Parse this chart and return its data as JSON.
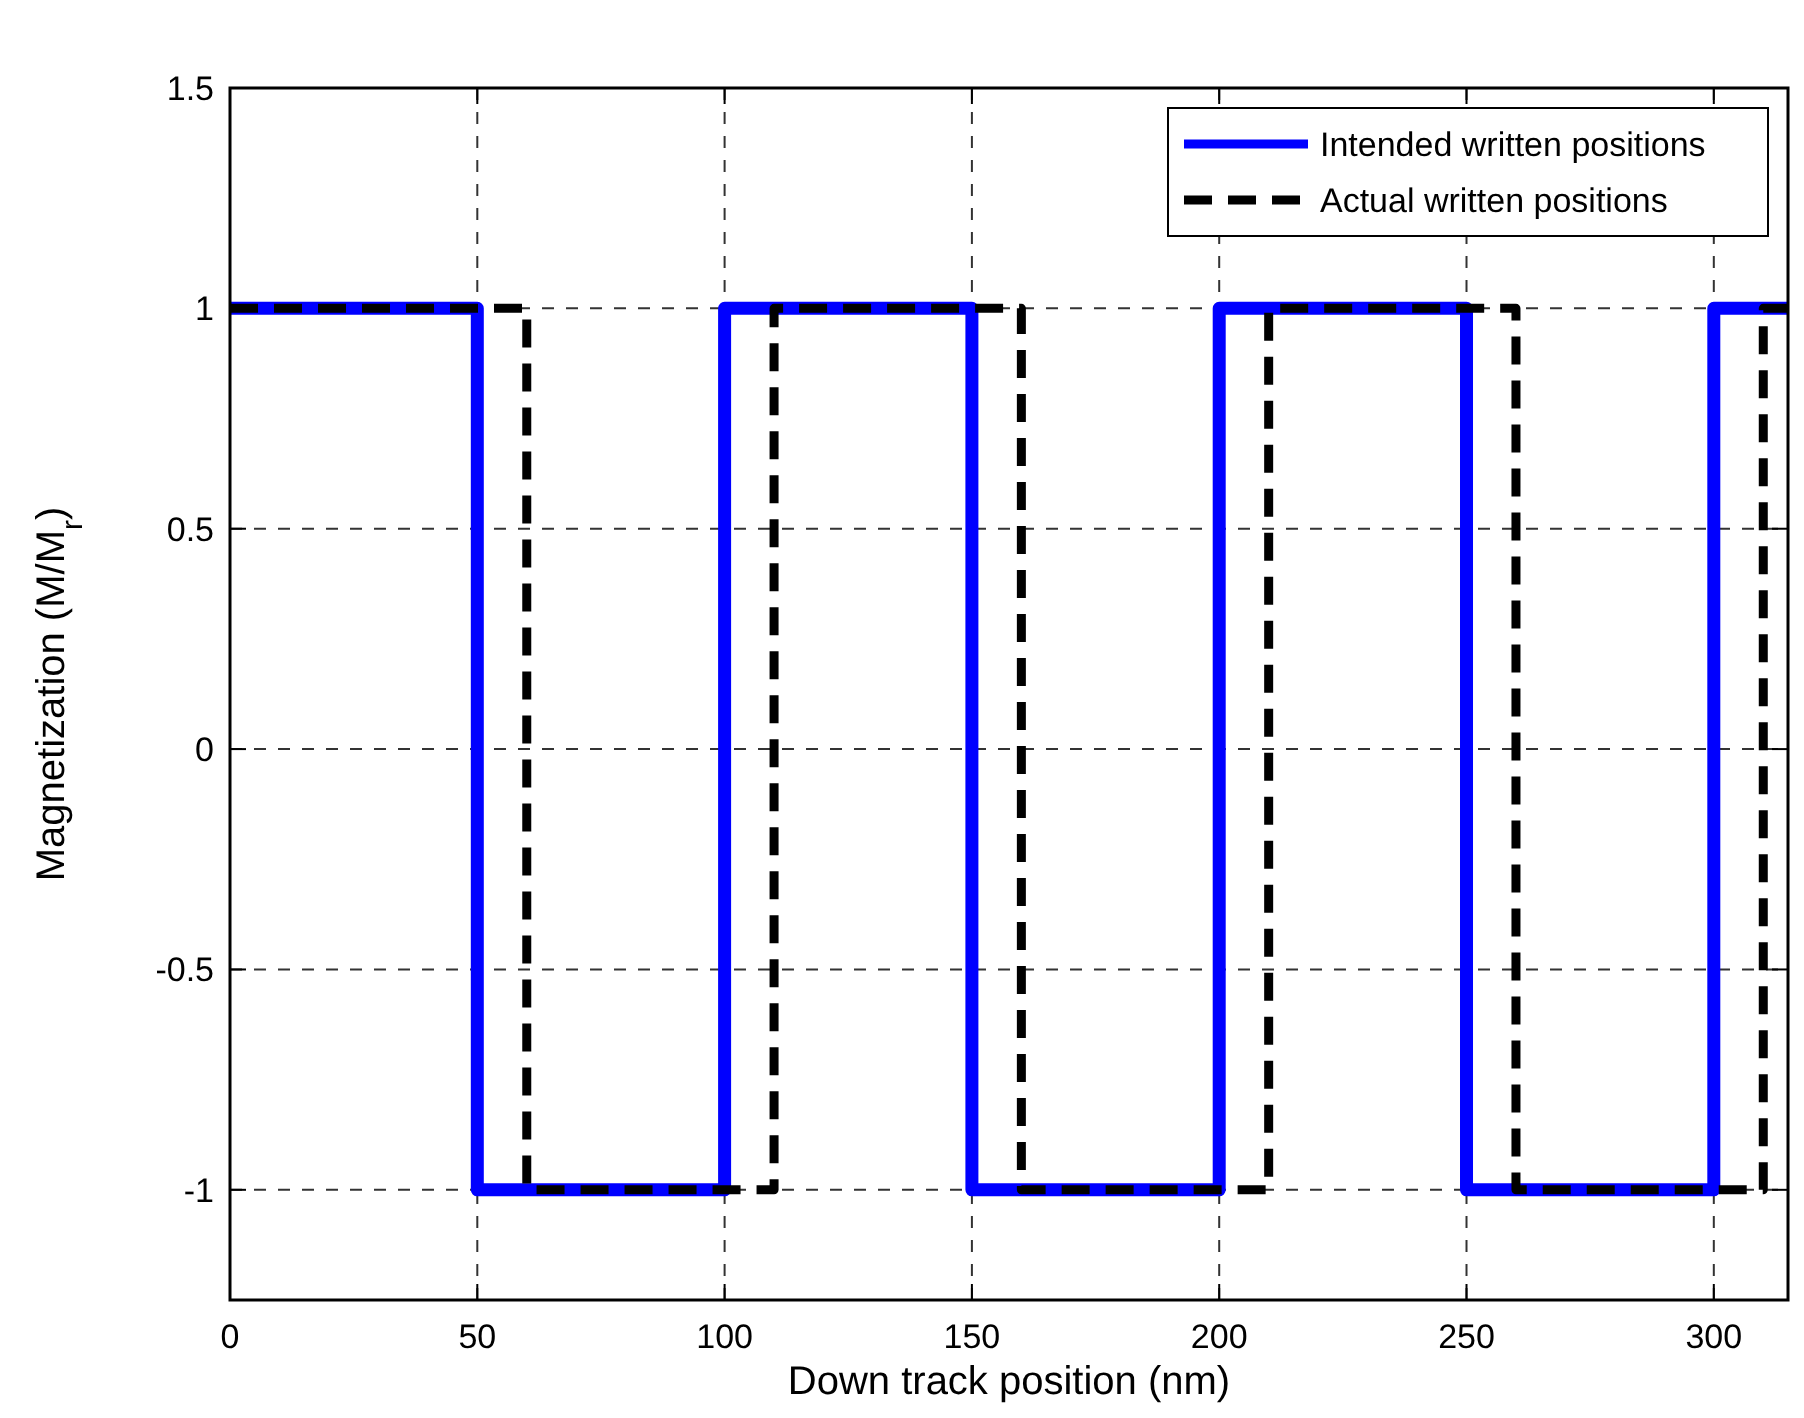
{
  "chart_data": {
    "type": "step",
    "xlabel": "Down track position (nm)",
    "ylabel": "Magnetization (M/M$_{r}$)",
    "xlim": [
      0,
      315
    ],
    "ylim": [
      -1.25,
      1.5
    ],
    "xticks": [
      0,
      50,
      100,
      150,
      200,
      250,
      300
    ],
    "yticks": [
      -1,
      -0.5,
      0,
      0.5,
      1,
      1.5
    ],
    "grid": true,
    "legend": "top right",
    "series": [
      {
        "name": "Intended written positions",
        "color": "#0000ff",
        "line_style": "solid",
        "x": [
          0,
          50,
          100,
          150,
          200,
          250,
          300,
          315
        ],
        "values": [
          1,
          -1,
          1,
          -1,
          1,
          -1,
          1,
          1
        ]
      },
      {
        "name": "Actual written positions",
        "color": "#000000",
        "line_style": "dashed",
        "x": [
          0,
          60,
          110,
          160,
          210,
          260,
          310,
          315
        ],
        "values": [
          1,
          -1,
          1,
          -1,
          1,
          -1,
          1,
          1
        ]
      }
    ]
  }
}
